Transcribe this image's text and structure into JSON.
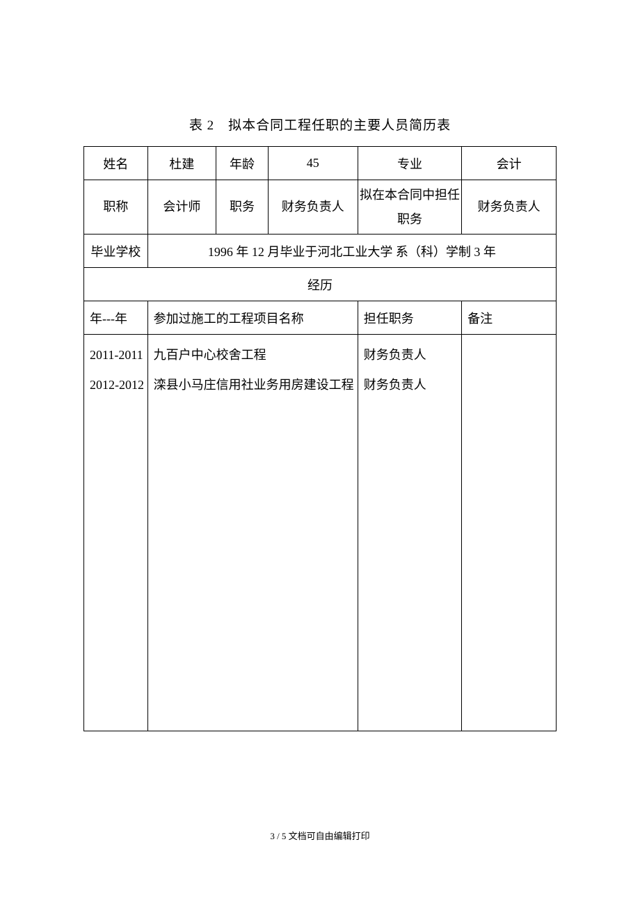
{
  "title": "表 2 拟本合同工程任职的主要人员简历表",
  "labels": {
    "name": "姓名",
    "age": "年龄",
    "major": "专业",
    "title": "职称",
    "position": "职务",
    "contract_role": "拟在本合同中担任职务",
    "school": "毕业学校",
    "history": "经历",
    "year_range": "年---年",
    "project_name": "参加过施工的工程项目名称",
    "served_role": "担任职务",
    "remark": "备注"
  },
  "person": {
    "name": "杜建",
    "age": "45",
    "major": "会计",
    "title": "会计师",
    "position": "财务负责人",
    "contract_role": "财务负责人",
    "school": "1996 年 12 月毕业于河北工业大学  系（科）学制 3 年"
  },
  "history": {
    "years": "2011-2011\n2012-2012",
    "projects": "九百户中心校舍工程\n滦县小马庄信用社业务用房建设工程",
    "roles": "财务负责人\n财务负责人",
    "remarks": ""
  },
  "footer": "3 / 5 文档可自由编辑打印",
  "style": {
    "page_bg": "#ffffff",
    "border_color": "#000000",
    "text_color": "#000000",
    "font_family": "SimSun",
    "title_fontsize": 19,
    "cell_fontsize": 18,
    "footer_fontsize": 13,
    "border_width": 1.5,
    "col_widths_pct": [
      13.5,
      14.5,
      11,
      19,
      22,
      20
    ]
  }
}
